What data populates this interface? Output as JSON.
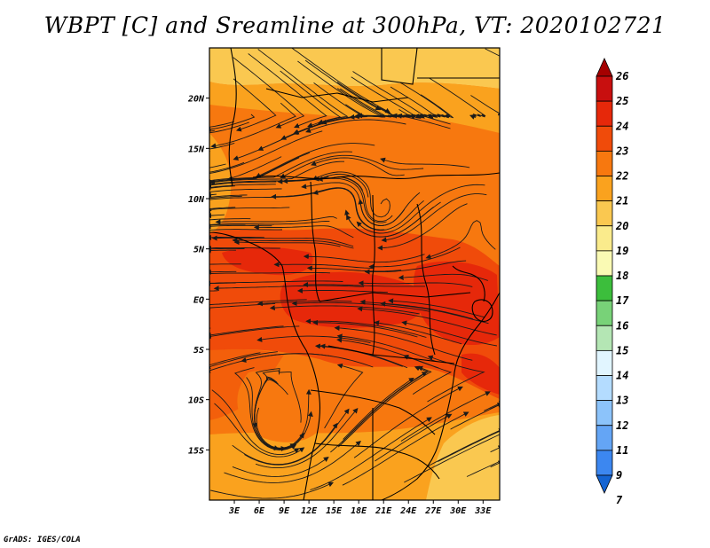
{
  "title": "WBPT [C] and Sreamline at 300hPa, VT: 2020102721",
  "credit": "GrADS: IGES/COLA",
  "map": {
    "lon_range": [
      0,
      35
    ],
    "lat_range": [
      -20,
      25
    ],
    "lat_ticks": [
      {
        "value": 20,
        "label": "20N"
      },
      {
        "value": 15,
        "label": "15N"
      },
      {
        "value": 10,
        "label": "10N"
      },
      {
        "value": 5,
        "label": "5N"
      },
      {
        "value": 0,
        "label": "EQ"
      },
      {
        "value": -5,
        "label": "5S"
      },
      {
        "value": -10,
        "label": "10S"
      },
      {
        "value": -15,
        "label": "15S"
      }
    ],
    "lon_ticks": [
      {
        "value": 3,
        "label": "3E"
      },
      {
        "value": 6,
        "label": "6E"
      },
      {
        "value": 9,
        "label": "9E"
      },
      {
        "value": 12,
        "label": "12E"
      },
      {
        "value": 15,
        "label": "15E"
      },
      {
        "value": 18,
        "label": "18E"
      },
      {
        "value": 21,
        "label": "21E"
      },
      {
        "value": 24,
        "label": "24E"
      },
      {
        "value": 27,
        "label": "27E"
      },
      {
        "value": 30,
        "label": "30E"
      },
      {
        "value": 33,
        "label": "33E"
      }
    ]
  },
  "colorbar": {
    "levels": [
      "26",
      "25",
      "24",
      "23",
      "22",
      "21",
      "20",
      "19",
      "18",
      "17",
      "16",
      "15",
      "14",
      "13",
      "12",
      "11",
      "9",
      "7"
    ],
    "colors": [
      "#a50000",
      "#c80f0f",
      "#e6280a",
      "#f04b0a",
      "#f7780f",
      "#faa21e",
      "#fac850",
      "#faeb8c",
      "#fafab4",
      "#3cbe3c",
      "#78d278",
      "#b4e6b4",
      "#e1f5ff",
      "#b4dcff",
      "#8cc3fa",
      "#64a5f5",
      "#3c87f0",
      "#1464d2"
    ]
  },
  "field_colors": {
    "c20": "#fac850",
    "c21": "#faa21e",
    "c22": "#f7780f",
    "c23": "#f04b0a",
    "c24": "#e6280a"
  }
}
